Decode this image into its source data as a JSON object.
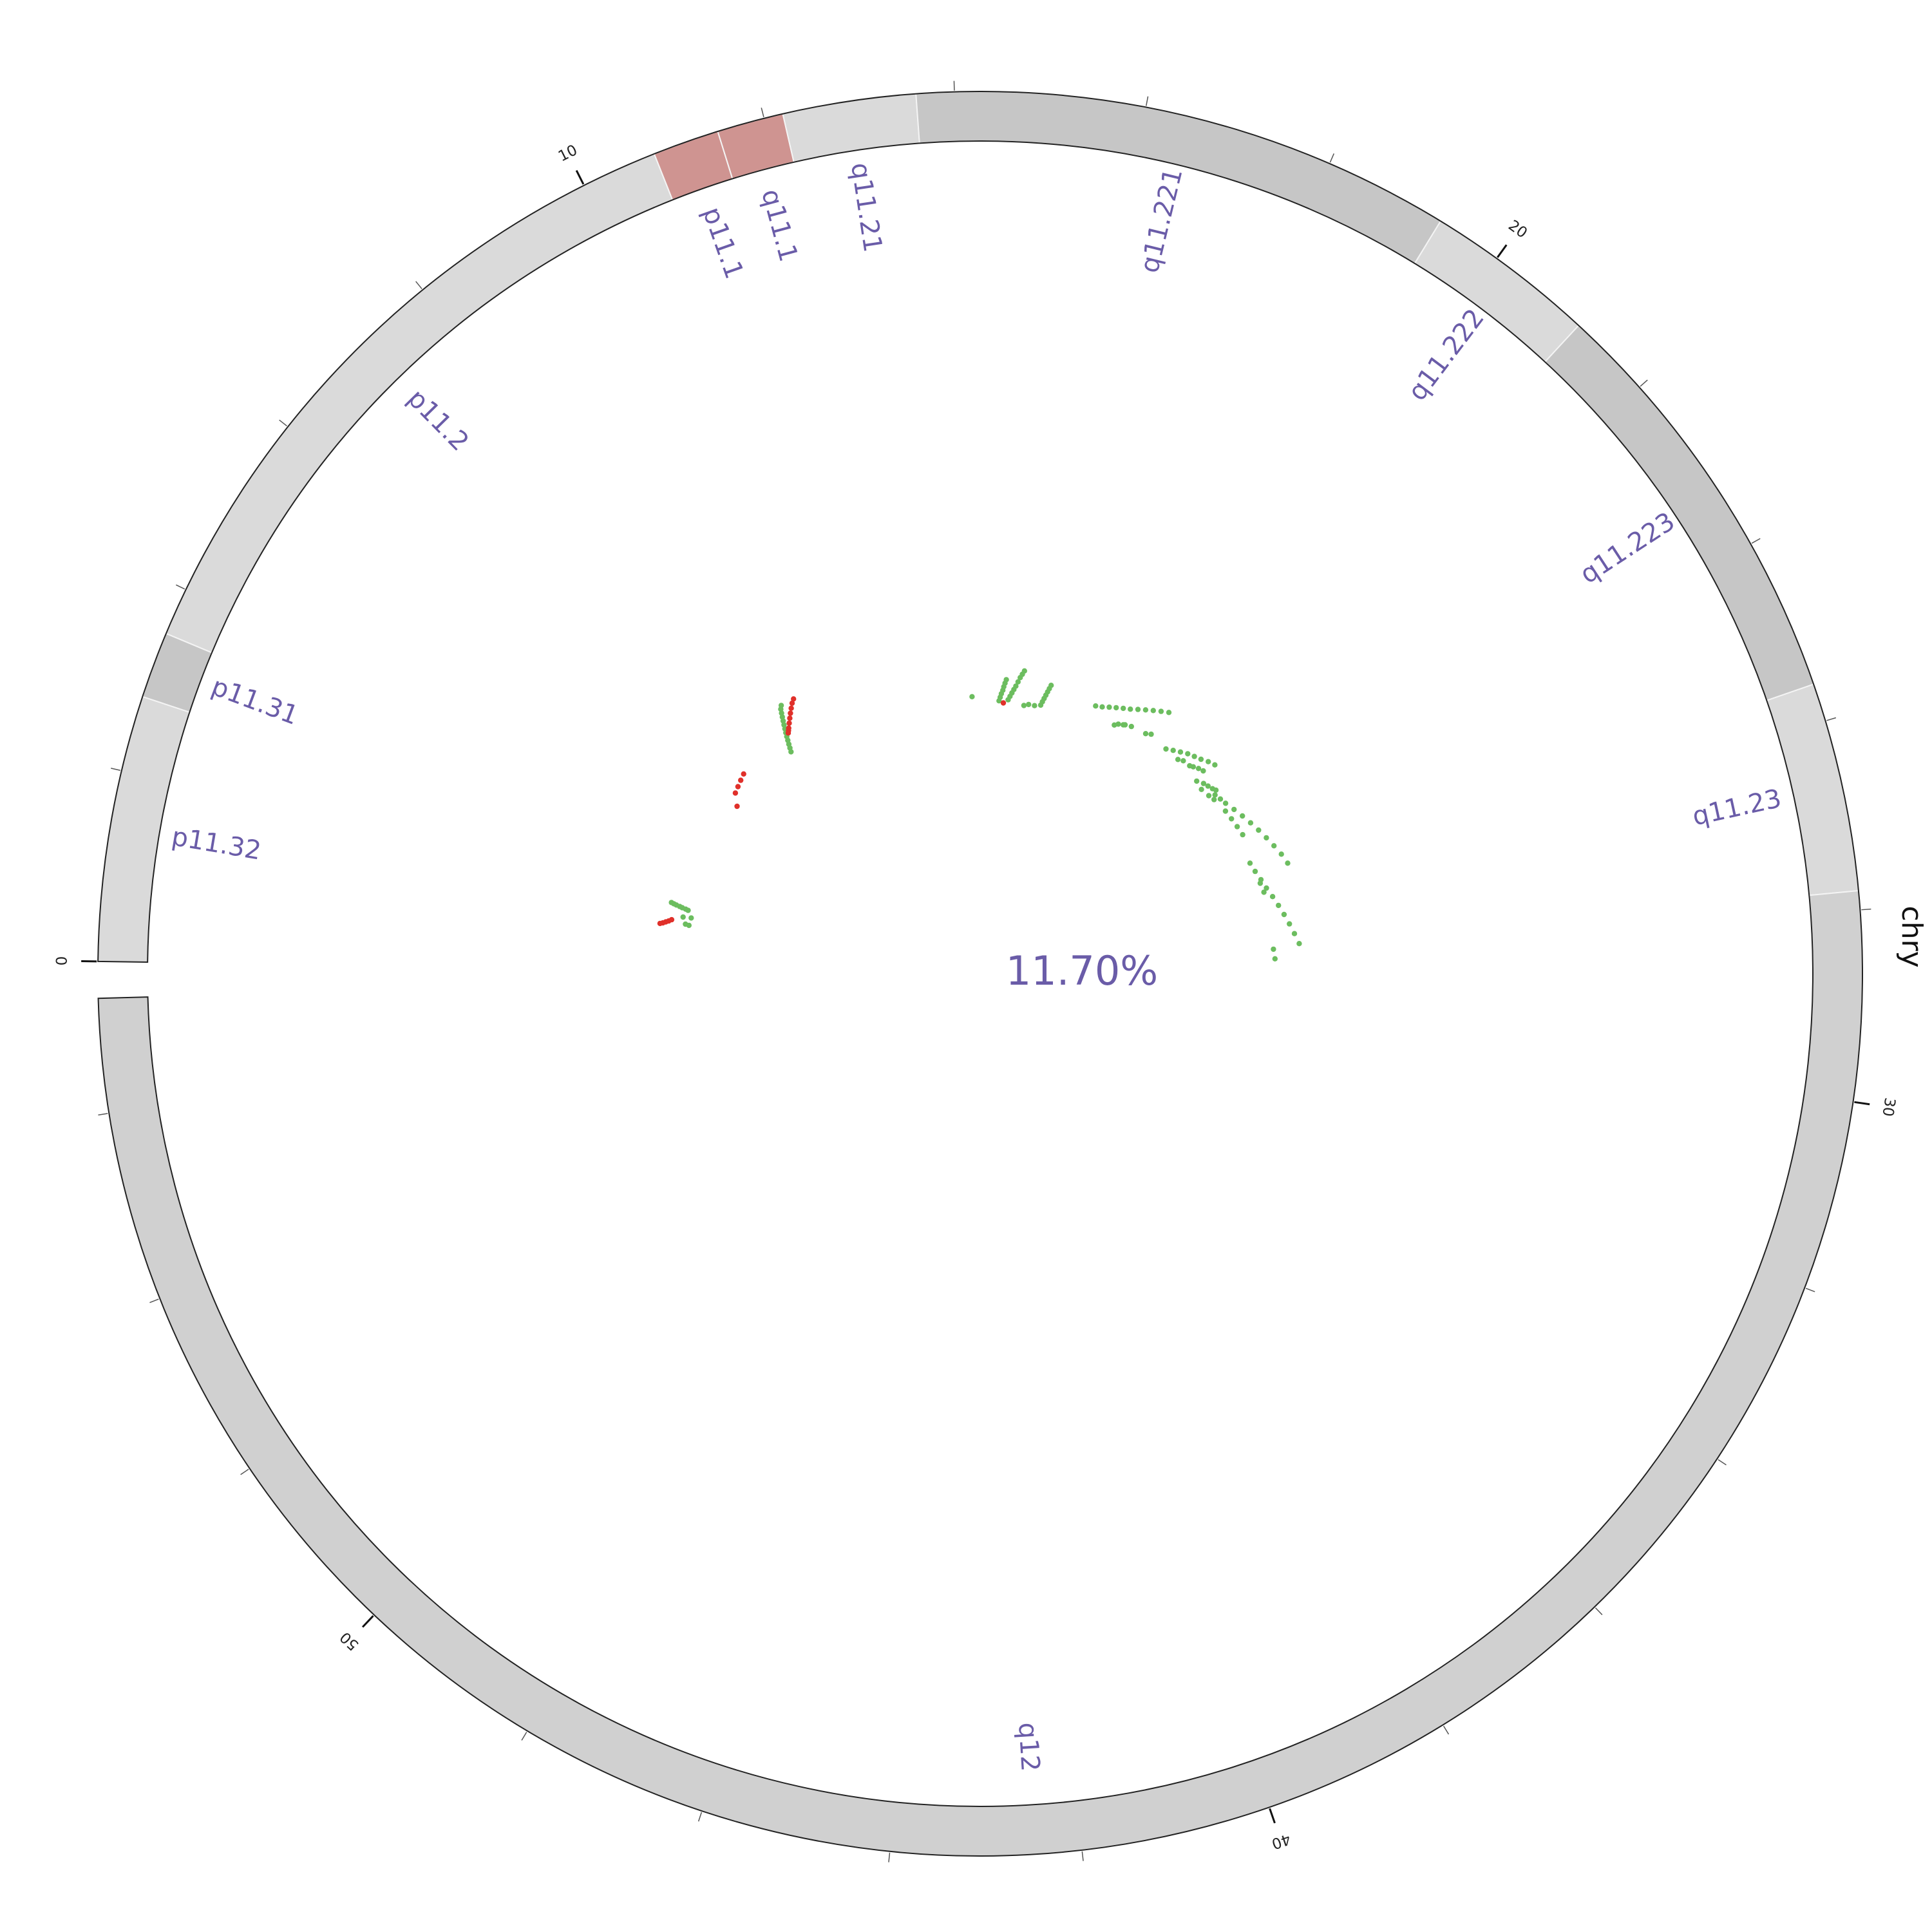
{
  "chart_data": {
    "type": "scatter",
    "layout": "circular-ideogram",
    "chromosome": "chry",
    "center_label": "11.70%",
    "axis": {
      "range": [
        0,
        57.2
      ],
      "major_ticks": [
        0,
        10,
        20,
        30,
        40,
        50
      ],
      "major_tick_labels": [
        "0",
        "10",
        "20",
        "30",
        "40",
        "50"
      ],
      "minor_step": 2
    },
    "bands": [
      {
        "name": "p11.32",
        "start": 0.0,
        "end": 2.8,
        "color": "#dadada"
      },
      {
        "name": "p11.31",
        "start": 2.8,
        "end": 3.5,
        "color": "#c6c6c6"
      },
      {
        "name": "p11.2",
        "start": 3.5,
        "end": 10.8,
        "color": "#dadada"
      },
      {
        "name": "p11.1",
        "start": 10.8,
        "end": 11.5,
        "color": "#cf9491"
      },
      {
        "name": "q11.1",
        "start": 11.5,
        "end": 12.2,
        "color": "#cf9491"
      },
      {
        "name": "q11.21",
        "start": 12.2,
        "end": 13.6,
        "color": "#dadada"
      },
      {
        "name": "q11.221",
        "start": 13.6,
        "end": 19.3,
        "color": "#c6c6c6"
      },
      {
        "name": "q11.222",
        "start": 19.3,
        "end": 21.1,
        "color": "#dadada"
      },
      {
        "name": "q11.223",
        "start": 21.1,
        "end": 25.6,
        "color": "#c6c6c6"
      },
      {
        "name": "q11.23",
        "start": 25.6,
        "end": 27.8,
        "color": "#dadada"
      },
      {
        "name": "q12",
        "start": 27.8,
        "end": 57.2,
        "color": "#d0d0d0"
      }
    ],
    "series": [
      {
        "color": "#6cbd5f",
        "points": [
          [
            1.95,
            0.8
          ],
          [
            1.93,
            0.77
          ],
          [
            1.91,
            0.74
          ],
          [
            1.89,
            0.7
          ],
          [
            1.87,
            0.67
          ],
          [
            1.85,
            0.63
          ],
          [
            1.83,
            0.6
          ],
          [
            1.6,
            0.64
          ],
          [
            1.4,
            0.6
          ],
          [
            1.38,
            0.56
          ],
          [
            1.62,
            0.55
          ],
          [
            7.8,
            0.52
          ],
          [
            7.85,
            0.56
          ],
          [
            7.9,
            0.6
          ],
          [
            7.95,
            0.64
          ],
          [
            8.0,
            0.68
          ],
          [
            8.05,
            0.72
          ],
          [
            8.1,
            0.76
          ],
          [
            8.15,
            0.8
          ],
          [
            8.2,
            0.84
          ],
          [
            8.25,
            0.88
          ],
          [
            8.3,
            0.92
          ],
          [
            8.35,
            0.96
          ],
          [
            8.42,
            0.99
          ],
          [
            14.9,
            0.32
          ],
          [
            14.93,
            0.36
          ],
          [
            14.96,
            0.4
          ],
          [
            15.0,
            0.44
          ],
          [
            15.02,
            0.48
          ],
          [
            15.05,
            0.52
          ],
          [
            15.08,
            0.56
          ],
          [
            15.2,
            0.34
          ],
          [
            15.25,
            0.38
          ],
          [
            15.3,
            0.42
          ],
          [
            15.35,
            0.46
          ],
          [
            15.4,
            0.5
          ],
          [
            15.45,
            0.55
          ],
          [
            15.5,
            0.6
          ],
          [
            15.55,
            0.64
          ],
          [
            15.6,
            0.68
          ],
          [
            15.9,
            0.32
          ],
          [
            16.3,
            0.34
          ],
          [
            16.33,
            0.38
          ],
          [
            16.36,
            0.42
          ],
          [
            16.39,
            0.46
          ],
          [
            16.42,
            0.5
          ],
          [
            16.45,
            0.54
          ],
          [
            16.48,
            0.58
          ],
          [
            16.1,
            0.32
          ],
          [
            14.0,
            0.36
          ],
          [
            15.75,
            0.3
          ],
          [
            18.0,
            0.52
          ],
          [
            18.2,
            0.54
          ],
          [
            18.4,
            0.57
          ],
          [
            18.6,
            0.6
          ],
          [
            18.8,
            0.63
          ],
          [
            19.0,
            0.66
          ],
          [
            19.2,
            0.7
          ],
          [
            19.4,
            0.74
          ],
          [
            19.6,
            0.78
          ],
          [
            19.8,
            0.82
          ],
          [
            20.0,
            0.86
          ],
          [
            18.9,
            0.45
          ],
          [
            19.05,
            0.47
          ],
          [
            18.8,
            0.42
          ],
          [
            19.3,
            0.5
          ],
          [
            19.1,
            0.48
          ],
          [
            19.8,
            0.52
          ],
          [
            19.95,
            0.55
          ],
          [
            20.6,
            0.52
          ],
          [
            20.8,
            0.56
          ],
          [
            21.0,
            0.6
          ],
          [
            21.2,
            0.64
          ],
          [
            21.4,
            0.67
          ],
          [
            21.6,
            0.7
          ],
          [
            21.8,
            0.74
          ],
          [
            22.0,
            0.77
          ],
          [
            21.1,
            0.52
          ],
          [
            21.25,
            0.55
          ],
          [
            21.5,
            0.56
          ],
          [
            21.6,
            0.58
          ],
          [
            21.75,
            0.61
          ],
          [
            21.9,
            0.63
          ],
          [
            22.2,
            0.54
          ],
          [
            22.35,
            0.56
          ],
          [
            22.5,
            0.58
          ],
          [
            22.6,
            0.6
          ],
          [
            22.0,
            0.5
          ],
          [
            22.3,
            0.48
          ],
          [
            22.6,
            0.5
          ],
          [
            22.8,
            0.52
          ],
          [
            22.7,
            0.56
          ],
          [
            22.9,
            0.58
          ],
          [
            23.1,
            0.6
          ],
          [
            23.4,
            0.64
          ],
          [
            23.7,
            0.68
          ],
          [
            24.0,
            0.72
          ],
          [
            24.3,
            0.76
          ],
          [
            24.6,
            0.8
          ],
          [
            24.9,
            0.84
          ],
          [
            25.2,
            0.88
          ],
          [
            25.5,
            0.91
          ],
          [
            23.3,
            0.55
          ],
          [
            23.6,
            0.56
          ],
          [
            23.9,
            0.57
          ],
          [
            24.2,
            0.58
          ],
          [
            25.1,
            0.52
          ],
          [
            25.4,
            0.54
          ],
          [
            25.7,
            0.57
          ],
          [
            26.0,
            0.6
          ],
          [
            26.3,
            0.64
          ],
          [
            26.6,
            0.68
          ],
          [
            26.9,
            0.72
          ],
          [
            27.2,
            0.76
          ],
          [
            27.5,
            0.8
          ],
          [
            27.8,
            0.84
          ],
          [
            25.8,
            0.55
          ],
          [
            26.1,
            0.56
          ],
          [
            27.9,
            0.55
          ],
          [
            28.2,
            0.56
          ]
        ]
      },
      {
        "color": "#e0302a",
        "points": [
          [
            1.3,
            0.88
          ],
          [
            1.33,
            0.85
          ],
          [
            1.37,
            0.82
          ],
          [
            1.41,
            0.79
          ],
          [
            1.46,
            0.76
          ],
          [
            5.7,
            0.66
          ],
          [
            5.9,
            0.68
          ],
          [
            6.1,
            0.7
          ],
          [
            6.3,
            0.72
          ],
          [
            5.4,
            0.56
          ],
          [
            8.1,
            0.7
          ],
          [
            8.15,
            0.72
          ],
          [
            8.2,
            0.74
          ],
          [
            8.3,
            0.78
          ],
          [
            8.4,
            0.82
          ],
          [
            8.5,
            0.86
          ],
          [
            8.6,
            0.9
          ],
          [
            8.7,
            0.94
          ],
          [
            8.8,
            0.97
          ],
          [
            15.05,
            0.3
          ]
        ]
      }
    ]
  }
}
